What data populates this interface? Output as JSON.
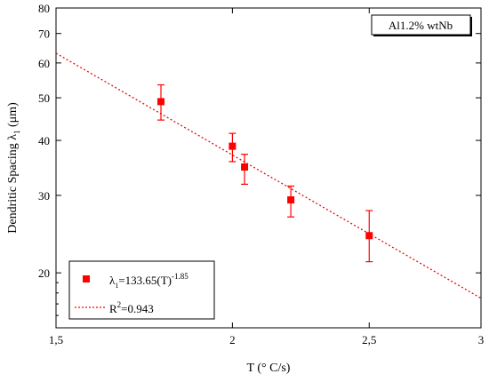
{
  "chart_data": {
    "type": "scatter",
    "title": "",
    "xlabel": "T (° C/s)",
    "ylabel_main": "Dendritic Spacing",
    "ylabel_symbol": "λ",
    "ylabel_sub": "1",
    "ylabel_unit": "(μm)",
    "annotation": "Al1.2% wtNb",
    "x_scale": "log",
    "y_scale": "log",
    "xlim": [
      1.5,
      3.0
    ],
    "ylim": [
      15,
      80
    ],
    "x_ticks": [
      1.5,
      2.0,
      2.5,
      3.0
    ],
    "x_tick_labels": [
      "1,5",
      "2",
      "2,5",
      "3"
    ],
    "y_ticks": [
      20,
      30,
      40,
      50,
      60,
      70,
      80
    ],
    "y_tick_labels": [
      "20",
      "30",
      "40",
      "50",
      "60",
      "70",
      "80"
    ],
    "series": [
      {
        "kind": "points",
        "color": "#ff0000",
        "x": [
          1.78,
          2.0,
          2.04,
          2.2,
          2.5
        ],
        "y": [
          49.0,
          38.8,
          34.8,
          29.3,
          24.3
        ],
        "err_low": [
          44.5,
          35.8,
          31.8,
          26.8,
          21.2
        ],
        "err_high": [
          53.5,
          41.5,
          37.2,
          31.5,
          27.7
        ]
      },
      {
        "kind": "fit",
        "color": "#ff0000",
        "coefficient": 133.65,
        "exponent": -1.85,
        "x_range": [
          1.5,
          3.0
        ]
      }
    ],
    "legend": {
      "placement": "bottom-left",
      "entries": [
        {
          "symbol": "λ",
          "sub": "1",
          "text": "=133.65(T)",
          "sup": "-1.85"
        },
        {
          "text_pre": "R",
          "sup": "2",
          "text": "=0.943"
        }
      ]
    }
  }
}
